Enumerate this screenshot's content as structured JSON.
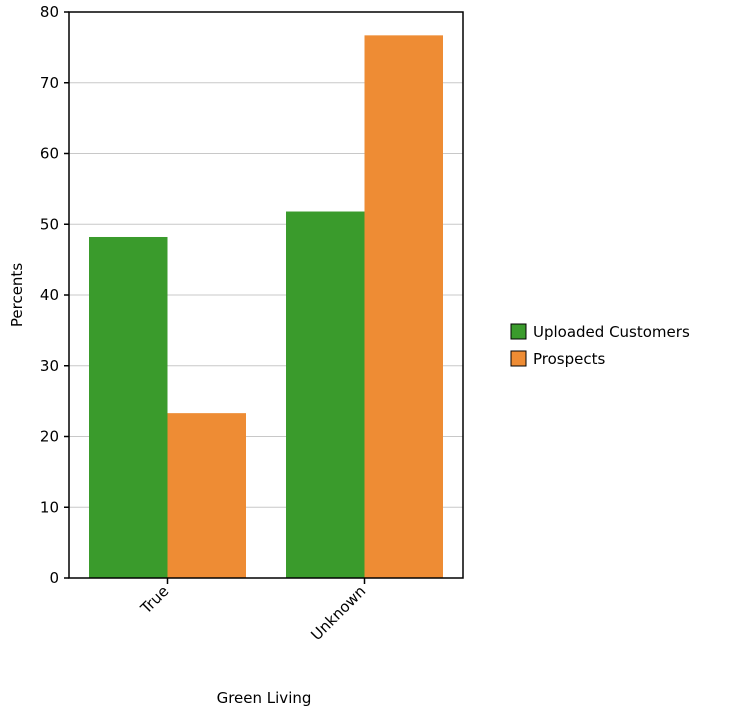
{
  "chart_data": {
    "type": "bar",
    "title": "",
    "xlabel": "Green Living",
    "ylabel": "Percents",
    "categories": [
      "True",
      "Unknown"
    ],
    "series": [
      {
        "name": "Uploaded Customers",
        "color": "#3a9b2c",
        "values": [
          48.2,
          51.8
        ]
      },
      {
        "name": "Prospects",
        "color": "#ee8c34",
        "values": [
          23.3,
          76.7
        ]
      }
    ],
    "ylim": [
      0,
      80
    ],
    "yticks": [
      0,
      10,
      20,
      30,
      40,
      50,
      60,
      70,
      80
    ],
    "grid": true,
    "legend_position": "right"
  }
}
